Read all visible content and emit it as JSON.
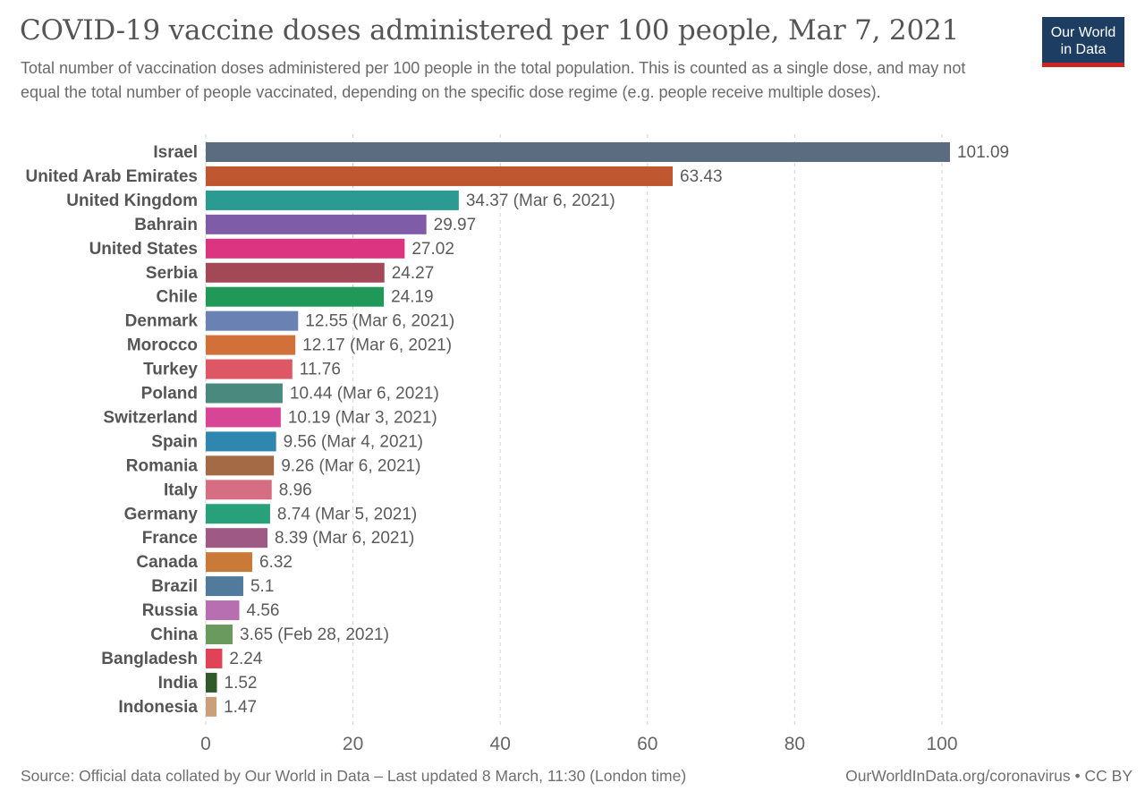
{
  "chart_data": {
    "type": "bar",
    "orientation": "horizontal",
    "title": "COVID-19 vaccine doses administered per 100 people, Mar 7, 2021",
    "subtitle": "Total number of vaccination doses administered per 100 people in the total population. This is counted as a single dose, and may not equal the total number of people vaccinated, depending on the specific dose regime (e.g. people receive multiple doses).",
    "xlim": [
      0,
      100
    ],
    "x_ticks": [
      0,
      20,
      40,
      60,
      80,
      100
    ],
    "grid": "vertical dashed",
    "bars": [
      {
        "label": "Israel",
        "value": 101.09,
        "value_label": "101.09",
        "note": "",
        "color": "#5b6b80"
      },
      {
        "label": "United Arab Emirates",
        "value": 63.43,
        "value_label": "63.43",
        "note": "",
        "color": "#bf5730"
      },
      {
        "label": "United Kingdom",
        "value": 34.37,
        "value_label": "34.37",
        "note": "(Mar 6, 2021)",
        "color": "#2a9a93"
      },
      {
        "label": "Bahrain",
        "value": 29.97,
        "value_label": "29.97",
        "note": "",
        "color": "#7f5ca8"
      },
      {
        "label": "United States",
        "value": 27.02,
        "value_label": "27.02",
        "note": "",
        "color": "#dc3481"
      },
      {
        "label": "Serbia",
        "value": 24.27,
        "value_label": "24.27",
        "note": "",
        "color": "#a24856"
      },
      {
        "label": "Chile",
        "value": 24.19,
        "value_label": "24.19",
        "note": "",
        "color": "#209858"
      },
      {
        "label": "Denmark",
        "value": 12.55,
        "value_label": "12.55",
        "note": "(Mar 6, 2021)",
        "color": "#6a82b3"
      },
      {
        "label": "Morocco",
        "value": 12.17,
        "value_label": "12.17",
        "note": "(Mar 6, 2021)",
        "color": "#d2703a"
      },
      {
        "label": "Turkey",
        "value": 11.76,
        "value_label": "11.76",
        "note": "",
        "color": "#de5765"
      },
      {
        "label": "Poland",
        "value": 10.44,
        "value_label": "10.44",
        "note": "(Mar 6, 2021)",
        "color": "#4a8a7e"
      },
      {
        "label": "Switzerland",
        "value": 10.19,
        "value_label": "10.19",
        "note": "(Mar 3, 2021)",
        "color": "#d84496"
      },
      {
        "label": "Spain",
        "value": 9.56,
        "value_label": "9.56",
        "note": "(Mar 4, 2021)",
        "color": "#2f86ae"
      },
      {
        "label": "Romania",
        "value": 9.26,
        "value_label": "9.26",
        "note": "(Mar 6, 2021)",
        "color": "#a46a45"
      },
      {
        "label": "Italy",
        "value": 8.96,
        "value_label": "8.96",
        "note": "",
        "color": "#d66e83"
      },
      {
        "label": "Germany",
        "value": 8.74,
        "value_label": "8.74",
        "note": "(Mar 5, 2021)",
        "color": "#28a07a"
      },
      {
        "label": "France",
        "value": 8.39,
        "value_label": "8.39",
        "note": "(Mar 6, 2021)",
        "color": "#9e5a85"
      },
      {
        "label": "Canada",
        "value": 6.32,
        "value_label": "6.32",
        "note": "",
        "color": "#c97a38"
      },
      {
        "label": "Brazil",
        "value": 5.1,
        "value_label": "5.1",
        "note": "",
        "color": "#527a9c"
      },
      {
        "label": "Russia",
        "value": 4.56,
        "value_label": "4.56",
        "note": "",
        "color": "#b76fb2"
      },
      {
        "label": "China",
        "value": 3.65,
        "value_label": "3.65",
        "note": "(Feb 28, 2021)",
        "color": "#6b9a5e"
      },
      {
        "label": "Bangladesh",
        "value": 2.24,
        "value_label": "2.24",
        "note": "",
        "color": "#e04355"
      },
      {
        "label": "India",
        "value": 1.52,
        "value_label": "1.52",
        "note": "",
        "color": "#2f5b2c"
      },
      {
        "label": "Indonesia",
        "value": 1.47,
        "value_label": "1.47",
        "note": "",
        "color": "#c9a079"
      }
    ]
  },
  "logo": {
    "line1": "Our World",
    "line2": "in Data",
    "bg_color": "#1d3d63",
    "accent_color": "#ce261e"
  },
  "footer": {
    "source": "Source: Official data collated by Our World in Data – Last updated 8 March, 11:30 (London time)",
    "url_license": "OurWorldInData.org/coronavirus • CC BY"
  }
}
